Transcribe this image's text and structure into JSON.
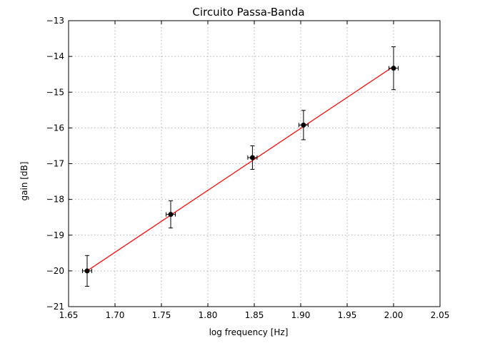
{
  "chart_data": {
    "type": "scatter",
    "title": "Circuito Passa-Banda",
    "xlabel": "log frequency [Hz]",
    "ylabel": "gain [dB]",
    "xlim": [
      1.65,
      2.05
    ],
    "ylim": [
      -21,
      -13
    ],
    "grid": true,
    "x_ticks": [
      1.65,
      1.7,
      1.75,
      1.8,
      1.85,
      1.9,
      1.95,
      2.0,
      2.05
    ],
    "x_tick_labels": [
      "1.65",
      "1.70",
      "1.75",
      "1.80",
      "1.85",
      "1.90",
      "1.95",
      "2.00",
      "2.05"
    ],
    "y_ticks": [
      -13,
      -14,
      -15,
      -16,
      -17,
      -18,
      -19,
      -20,
      -21
    ],
    "y_tick_labels": [
      "−13",
      "−14",
      "−15",
      "−16",
      "−17",
      "−18",
      "−19",
      "−20",
      "−21"
    ],
    "series": [
      {
        "kind": "errorbar",
        "color": "#000000",
        "x": [
          1.67,
          1.76,
          1.848,
          1.903,
          2.0
        ],
        "y": [
          -20.0,
          -18.42,
          -16.83,
          -15.92,
          -14.33
        ],
        "yerr": [
          0.43,
          0.38,
          0.33,
          0.41,
          0.6
        ],
        "xerr": [
          0.005,
          0.005,
          0.005,
          0.005,
          0.005
        ]
      },
      {
        "kind": "line",
        "color": "#ff0000",
        "x": [
          1.67,
          2.0
        ],
        "y": [
          -20.0,
          -14.28
        ]
      }
    ]
  }
}
